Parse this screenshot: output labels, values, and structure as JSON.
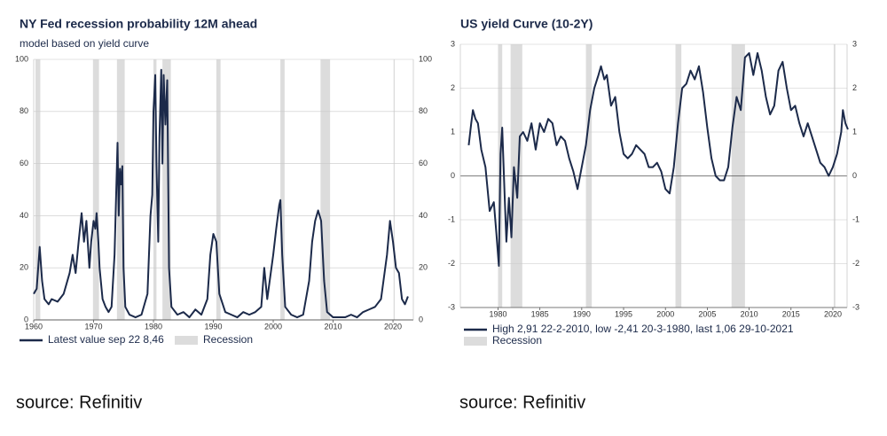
{
  "chart_data": [
    {
      "type": "line",
      "title": "NY Fed recession probability 12M ahead",
      "subtitle": "model based on yield curve",
      "source": "source: Refinitiv",
      "xlim": [
        1960,
        2023.4
      ],
      "xticks": [
        1960,
        1970,
        1980,
        1990,
        2000,
        2010,
        2020
      ],
      "ylim": [
        0,
        100
      ],
      "yticks": [
        0,
        20,
        40,
        60,
        80,
        100
      ],
      "grid": true,
      "recessions": {
        "name": "Recession",
        "color": "#dcdcdc",
        "spans": [
          [
            1960.3,
            1961.1
          ],
          [
            1969.9,
            1970.9
          ],
          [
            1973.9,
            1975.2
          ],
          [
            1980.0,
            1980.5
          ],
          [
            1981.5,
            1982.9
          ],
          [
            1990.5,
            1991.2
          ],
          [
            2001.2,
            2001.9
          ],
          [
            2007.9,
            2009.5
          ],
          [
            2020.1,
            2020.3
          ]
        ]
      },
      "series": [
        {
          "name": "Latest value sep 22 8,46",
          "color": "#1c2a4a",
          "x": [
            1960,
            1960.5,
            1961,
            1961.4,
            1961.8,
            1962.5,
            1963,
            1964,
            1965,
            1966,
            1966.5,
            1967,
            1967.5,
            1968,
            1968.4,
            1968.8,
            1969.3,
            1969.6,
            1970,
            1970.3,
            1970.5,
            1970.8,
            1971,
            1971.5,
            1972,
            1972.5,
            1973,
            1973.5,
            1974,
            1974.2,
            1974.4,
            1974.6,
            1974.8,
            1975,
            1975.3,
            1976,
            1977,
            1978,
            1979,
            1979.5,
            1979.8,
            1980,
            1980.3,
            1980.5,
            1980.8,
            1981,
            1981.3,
            1981.5,
            1981.7,
            1982,
            1982.3,
            1982.6,
            1983,
            1984,
            1985,
            1986,
            1987,
            1988,
            1989,
            1989.5,
            1990,
            1990.5,
            1991,
            1992,
            1993,
            1994,
            1995,
            1996,
            1997,
            1998,
            1998.5,
            1999,
            2000,
            2000.5,
            2001,
            2001.2,
            2001.5,
            2002,
            2003,
            2004,
            2005,
            2006,
            2006.5,
            2007,
            2007.5,
            2008,
            2008.5,
            2009,
            2010,
            2011,
            2012,
            2013,
            2014,
            2015,
            2016,
            2017,
            2018,
            2019,
            2019.5,
            2020,
            2020.5,
            2021,
            2021.5,
            2022,
            2022.5
          ],
          "values": [
            10,
            12,
            28,
            15,
            8,
            6,
            8,
            7,
            10,
            18,
            25,
            18,
            30,
            41,
            30,
            38,
            20,
            30,
            38,
            35,
            41,
            30,
            20,
            8,
            5,
            3,
            5,
            25,
            68,
            40,
            58,
            52,
            59,
            20,
            5,
            2,
            1,
            2,
            10,
            40,
            48,
            80,
            94,
            60,
            30,
            70,
            96,
            60,
            94,
            75,
            92,
            20,
            5,
            2,
            3,
            1,
            4,
            2,
            8,
            25,
            33,
            30,
            10,
            3,
            2,
            1,
            3,
            2,
            3,
            5,
            20,
            8,
            25,
            35,
            44,
            46,
            25,
            5,
            2,
            1,
            2,
            15,
            30,
            38,
            42,
            38,
            15,
            3,
            1,
            1,
            1,
            2,
            1,
            3,
            4,
            5,
            8,
            25,
            38,
            30,
            20,
            18,
            8,
            6,
            9
          ]
        }
      ]
    },
    {
      "type": "line",
      "title": "US yield Curve (10-2Y)",
      "source": "source: Refinitiv",
      "xlim": [
        1975.5,
        2021.7
      ],
      "xticks": [
        1980,
        1985,
        1990,
        1995,
        2000,
        2005,
        2010,
        2015,
        2020
      ],
      "ylim": [
        -3,
        3
      ],
      "yticks": [
        -3,
        -2,
        -1,
        0,
        1,
        2,
        3
      ],
      "grid": true,
      "recessions": {
        "name": "Recession",
        "color": "#dcdcdc",
        "spans": [
          [
            1980.0,
            1980.5
          ],
          [
            1981.5,
            1982.9
          ],
          [
            1990.5,
            1991.2
          ],
          [
            2001.2,
            2001.9
          ],
          [
            2007.9,
            2009.5
          ],
          [
            2020.1,
            2020.3
          ]
        ]
      },
      "series": [
        {
          "name": "High 2,91 22-2-2010, low -2,41 20-3-1980, last 1,06 29-10-2021",
          "color": "#1c2a4a",
          "x": [
            1976.5,
            1976.8,
            1977,
            1977.3,
            1977.6,
            1978,
            1978.5,
            1979,
            1979.5,
            1979.8,
            1980.1,
            1980.3,
            1980.5,
            1980.8,
            1981,
            1981.3,
            1981.6,
            1981.9,
            1982.3,
            1982.6,
            1983,
            1983.5,
            1984,
            1984.5,
            1985,
            1985.5,
            1986,
            1986.5,
            1987,
            1987.5,
            1988,
            1988.5,
            1989,
            1989.5,
            1990,
            1990.5,
            1991,
            1991.5,
            1992,
            1992.3,
            1992.7,
            1993,
            1993.5,
            1994,
            1994.5,
            1995,
            1995.5,
            1996,
            1996.5,
            1997,
            1997.5,
            1998,
            1998.5,
            1999,
            1999.5,
            2000,
            2000.5,
            2001,
            2001.5,
            2002,
            2002.5,
            2003,
            2003.5,
            2004,
            2004.5,
            2005,
            2005.5,
            2006,
            2006.5,
            2007,
            2007.5,
            2008,
            2008.5,
            2009,
            2009.5,
            2010,
            2010.5,
            2011,
            2011.5,
            2012,
            2012.5,
            2013,
            2013.5,
            2014,
            2014.5,
            2015,
            2015.5,
            2016,
            2016.5,
            2017,
            2017.5,
            2018,
            2018.5,
            2019,
            2019.5,
            2020,
            2020.5,
            2021,
            2021.2,
            2021.5,
            2021.8
          ],
          "values": [
            0.7,
            1.2,
            1.5,
            1.3,
            1.2,
            0.6,
            0.2,
            -0.8,
            -0.6,
            -1.3,
            -2.05,
            0.5,
            1.1,
            -0.5,
            -1.5,
            -0.5,
            -1.4,
            0.2,
            -0.5,
            0.9,
            1.0,
            0.8,
            1.2,
            0.6,
            1.2,
            1.0,
            1.3,
            1.2,
            0.7,
            0.9,
            0.8,
            0.4,
            0.1,
            -0.3,
            0.2,
            0.7,
            1.5,
            2.0,
            2.3,
            2.5,
            2.2,
            2.3,
            1.6,
            1.8,
            1.0,
            0.5,
            0.4,
            0.5,
            0.7,
            0.6,
            0.5,
            0.2,
            0.2,
            0.3,
            0.1,
            -0.3,
            -0.4,
            0.2,
            1.2,
            2.0,
            2.1,
            2.4,
            2.2,
            2.5,
            1.9,
            1.1,
            0.4,
            0.0,
            -0.1,
            -0.1,
            0.2,
            1.1,
            1.8,
            1.5,
            2.7,
            2.8,
            2.3,
            2.8,
            2.4,
            1.8,
            1.4,
            1.6,
            2.4,
            2.6,
            2.0,
            1.5,
            1.6,
            1.2,
            0.9,
            1.2,
            0.9,
            0.6,
            0.3,
            0.2,
            0.0,
            0.2,
            0.5,
            1.0,
            1.5,
            1.2,
            1.06
          ]
        }
      ]
    }
  ]
}
